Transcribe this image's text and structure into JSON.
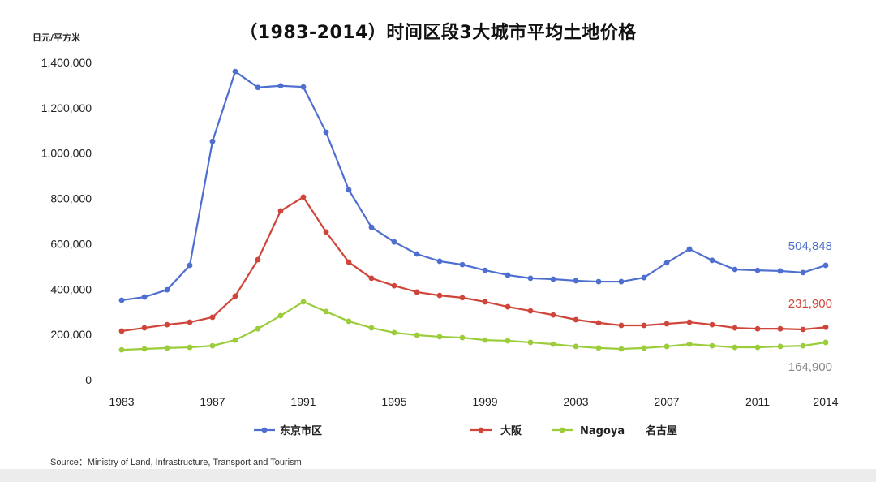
{
  "chart_data": {
    "type": "line",
    "title": "（1983-2014）时间区段3大城市平均土地价格",
    "ylabel": "日元/平方米",
    "xlabel": "",
    "ylim": [
      0,
      1400000
    ],
    "yticks": [
      0,
      200000,
      400000,
      600000,
      800000,
      1000000,
      1200000,
      1400000
    ],
    "ytick_labels": [
      "0",
      "200,000",
      "400,000",
      "600,000",
      "800,000",
      "1,000,000",
      "1,200,000",
      "1,400,000"
    ],
    "xtick_labels": [
      "1983",
      "1987",
      "1991",
      "1995",
      "1999",
      "2003",
      "2007",
      "2011",
      "2014"
    ],
    "grid": false,
    "legend_position": "bottom",
    "x": [
      1983,
      1984,
      1985,
      1986,
      1987,
      1988,
      1989,
      1990,
      1991,
      1992,
      1993,
      1994,
      1995,
      1996,
      1997,
      1998,
      1999,
      2000,
      2001,
      2002,
      2003,
      2004,
      2005,
      2006,
      2007,
      2008,
      2009,
      2010,
      2011,
      2012,
      2013,
      2014
    ],
    "series": [
      {
        "name": "东京市区",
        "color": "#4f6fd0",
        "values": [
          351000,
          365000,
          397000,
          505000,
          1052000,
          1360000,
          1290000,
          1297000,
          1292000,
          1092000,
          838000,
          673000,
          608000,
          555000,
          523000,
          508000,
          483000,
          462000,
          448000,
          444000,
          437000,
          433000,
          433000,
          451000,
          516000,
          577000,
          527000,
          487000,
          483000,
          480000,
          473000,
          504848
        ],
        "end_label": "504,848"
      },
      {
        "name": "大阪",
        "color": "#d0453a",
        "values": [
          215000,
          229000,
          243000,
          254000,
          276000,
          369000,
          530000,
          745000,
          806000,
          652000,
          519000,
          448000,
          415000,
          387000,
          372000,
          362000,
          344000,
          322000,
          304000,
          286000,
          265000,
          251000,
          240000,
          240000,
          247000,
          254000,
          243000,
          229000,
          225000,
          225000,
          222000,
          231900
        ],
        "end_label": "231,900"
      },
      {
        "name": "Nagoya　名古屋",
        "color": "#9bcc3a",
        "values": [
          132000,
          136000,
          140000,
          143000,
          150000,
          175000,
          225000,
          283000,
          344000,
          301000,
          258000,
          229000,
          208000,
          197000,
          190000,
          186000,
          175000,
          172000,
          165000,
          157000,
          147000,
          140000,
          136000,
          140000,
          147000,
          157000,
          150000,
          143000,
          143000,
          147000,
          150000,
          164900
        ],
        "end_label": "164,900"
      }
    ],
    "source": "Source：Ministry of Land, Infrastructure, Transport and Tourism"
  },
  "labels": {
    "title": "（1983-2014）时间区段3大城市平均土地价格",
    "unit": "日元/平方米",
    "legend_tokyo": "东京市区",
    "legend_osaka": "大阪",
    "legend_nagoya": "Nagoya",
    "legend_nagoya_cn": "名古屋",
    "source": "Source：Ministry of Land, Infrastructure, Transport and Tourism"
  }
}
